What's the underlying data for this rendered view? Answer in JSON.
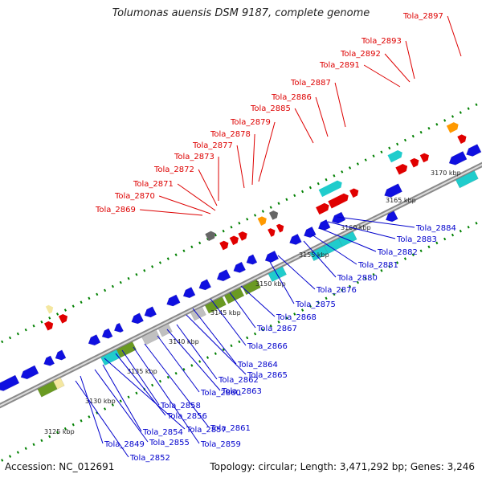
{
  "title": "Tolumonas auensis DSM 9187, complete genome",
  "footer": {
    "accession": "Accession: NC_012691",
    "summary": "Topology: circular; Length: 3,471,292 bp; Genes: 3,246"
  },
  "colors": {
    "cds": "#1010e0",
    "rna": "#e00000",
    "cyan_feature": "#20cccc",
    "olive_feature": "#6a9a22",
    "gray_feature": "#666666",
    "lightgray_feature": "#c0c0c0",
    "orange_feature": "#ff9900",
    "ticks": "#008000",
    "backbone": "#808080",
    "label_red": "#dd0000",
    "label_blue": "#0000cc"
  },
  "scale_labels": [
    "3125 kbp",
    "3130 kbp",
    "3135 kbp",
    "3140 kbp",
    "3145 kbp",
    "3150 kbp",
    "3155 kbp",
    "3160 kbp",
    "3165 kbp",
    "3170 kbp"
  ],
  "top_labels": [
    "Tola_2869",
    "Tola_2870",
    "Tola_2871",
    "Tola_2872",
    "Tola_2873",
    "Tola_2877",
    "Tola_2878",
    "Tola_2879",
    "Tola_2885",
    "Tola_2886",
    "Tola_2887",
    "Tola_2891",
    "Tola_2892",
    "Tola_2893",
    "Tola_2897"
  ],
  "bottom_labels": [
    "Tola_2884",
    "Tola_2883",
    "Tola_2882",
    "Tola_2881",
    "Tola_2880",
    "Tola_2876",
    "Tola_2875",
    "Tola_2868",
    "Tola_2867",
    "Tola_2866",
    "Tola_2864",
    "Tola_2865",
    "Tola_2862",
    "Tola_2863",
    "Tola_2860",
    "Tola_2858",
    "Tola_2861",
    "Tola_2856",
    "Tola_2857",
    "Tola_2859",
    "Tola_2854",
    "Tola_2855",
    "Tola_2849",
    "Tola_2852"
  ]
}
